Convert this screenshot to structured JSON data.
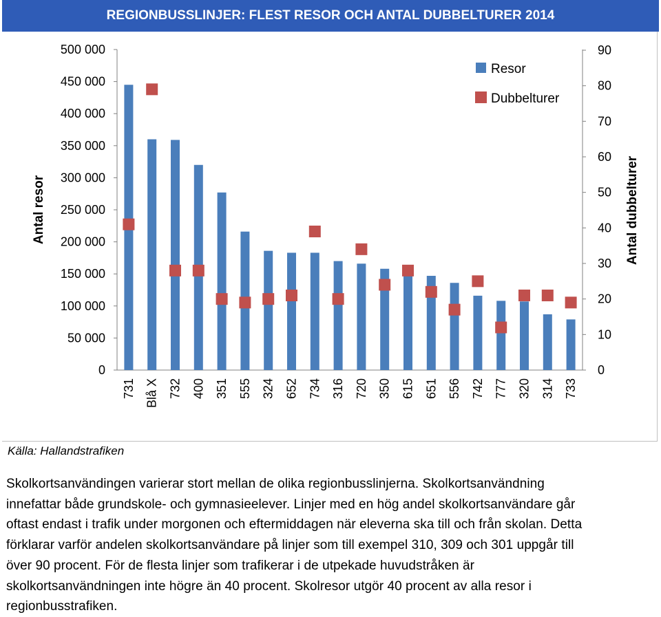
{
  "title": "REGIONBUSSLINJER: FLEST RESOR OCH ANTAL DUBBELTURER 2014",
  "colors": {
    "title_bg": "#2f5cb7",
    "bars": "#4a7ebb",
    "markers": "#c0504d"
  },
  "chart_data": {
    "type": "bar",
    "categories": [
      "731",
      "Blå X",
      "732",
      "400",
      "351",
      "555",
      "324",
      "652",
      "734",
      "316",
      "720",
      "350",
      "615",
      "651",
      "556",
      "742",
      "777",
      "320",
      "314",
      "733"
    ],
    "series": [
      {
        "name": "Resor",
        "type": "bar",
        "axis": "left",
        "values": [
          445000,
          360000,
          359000,
          320000,
          277000,
          216000,
          186000,
          183000,
          183000,
          170000,
          166000,
          158000,
          152000,
          147000,
          136000,
          116000,
          108000,
          107000,
          87000,
          79000
        ]
      },
      {
        "name": "Dubbelturer",
        "type": "scatter",
        "axis": "right",
        "marker": "square",
        "values": [
          41,
          79,
          28,
          28,
          20,
          19,
          20,
          21,
          39,
          20,
          34,
          24,
          28,
          22,
          17,
          25,
          12,
          21,
          21,
          19
        ]
      }
    ],
    "ylabel": "Antal resor",
    "y2label": "Antal dubbelturer",
    "ylim": [
      0,
      500000
    ],
    "y2lim": [
      0,
      90
    ],
    "yticks": [
      "0",
      "50 000",
      "100 000",
      "150 000",
      "200 000",
      "250 000",
      "300 000",
      "350 000",
      "400 000",
      "450 000",
      "500 000"
    ],
    "y2ticks": [
      "0",
      "10",
      "20",
      "30",
      "40",
      "50",
      "60",
      "70",
      "80",
      "90"
    ],
    "legend_position": "top-right",
    "grid": false
  },
  "source": "Källa: Hallandstrafiken",
  "paragraph_lines": [
    "Skolkortsanvändingen varierar stort mellan de olika regionbusslinjerna. Skolkortsanvändning",
    "innefattar både grundskole- och gymnasieelever. Linjer med en hög andel skolkortsanvändare går",
    "oftast endast i trafik under morgonen och eftermiddagen när eleverna ska till och från skolan. Detta",
    "förklarar varför andelen skolkortsanvändare på linjer som till exempel 310, 309 och 301 uppgår till",
    "över 90 procent. För de flesta linjer som trafikerar i de utpekade huvudstråken är",
    "skolkortsanvändningen inte högre än 40 procent. Skolresor utgör 40 procent av alla resor i",
    "regionbusstrafiken."
  ]
}
